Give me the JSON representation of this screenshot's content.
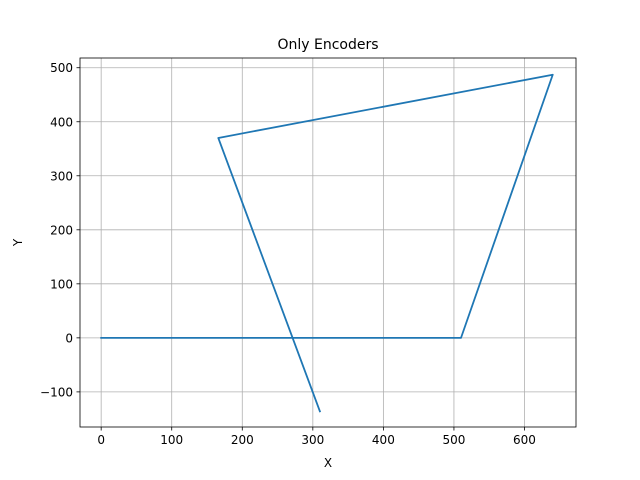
{
  "chart_data": {
    "type": "line",
    "title": "Only Encoders",
    "xlabel": "X",
    "ylabel": "Y",
    "xlim": [
      -30,
      673
    ],
    "ylim": [
      -165,
      518
    ],
    "xticks": [
      0,
      100,
      200,
      300,
      400,
      500,
      600
    ],
    "yticks": [
      -100,
      0,
      100,
      200,
      300,
      400,
      500
    ],
    "xtick_labels": [
      "0",
      "100",
      "200",
      "300",
      "400",
      "500",
      "600"
    ],
    "ytick_labels": [
      "−100",
      "0",
      "100",
      "200",
      "300",
      "400",
      "500"
    ],
    "grid": true,
    "series": [
      {
        "color": "#1f77b4",
        "x": [
          0,
          510,
          640,
          166,
          310
        ],
        "y": [
          0,
          0,
          487,
          370,
          -136
        ]
      }
    ]
  }
}
